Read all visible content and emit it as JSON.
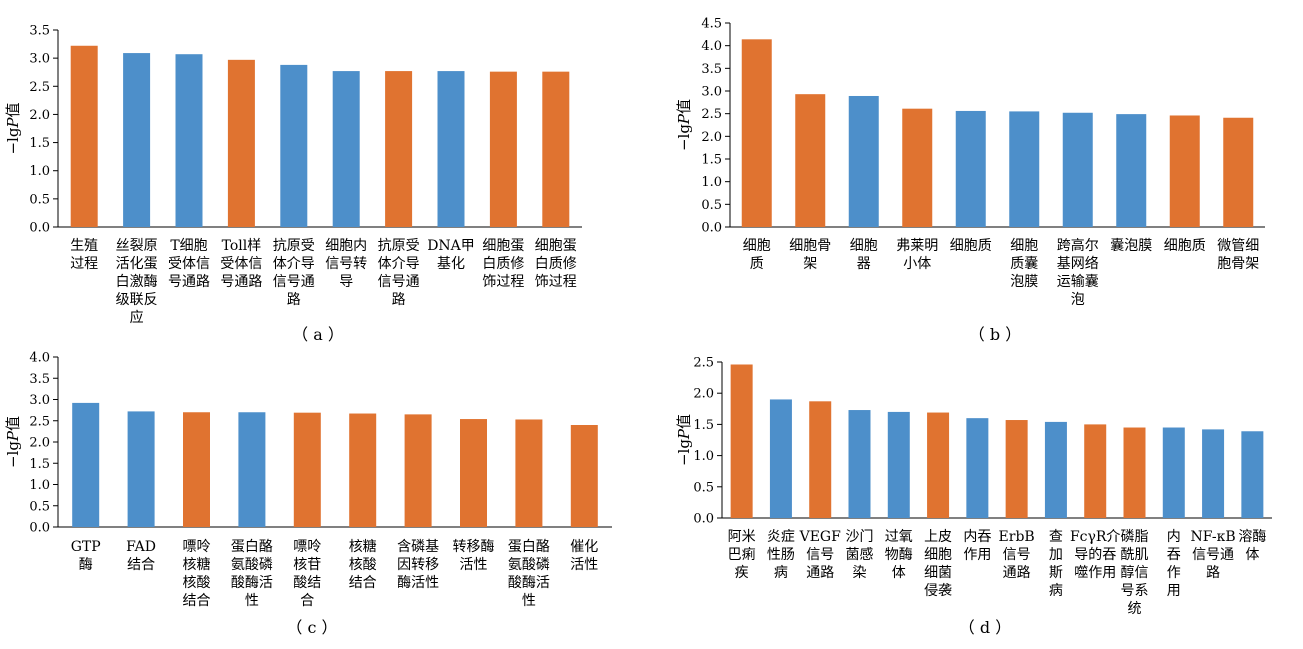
{
  "colors": {
    "blue": "#4d8fca",
    "orange": "#e07330"
  },
  "chart_data": [
    {
      "id": "a",
      "type": "bar",
      "panel_label": "（ a ）",
      "ylabel_prefix": "−lg",
      "ylabel_italic": "P",
      "ylabel_suffix": "值",
      "ylim": [
        0,
        3.5
      ],
      "yticks": [
        "0.0",
        "0.5",
        "1.0",
        "1.5",
        "2.0",
        "2.5",
        "3.0",
        "3.5"
      ],
      "categories": [
        [
          "生殖",
          "过程"
        ],
        [
          "丝裂原",
          "活化蛋",
          "白激酶",
          "级联反",
          "应"
        ],
        [
          "T细胞",
          "受体信",
          "号通路"
        ],
        [
          "Toll样",
          "受体信",
          "号通路"
        ],
        [
          "抗原受",
          "体介导",
          "信号通",
          "路"
        ],
        [
          "细胞内",
          "信号转",
          "导"
        ],
        [
          "抗原受",
          "体介导",
          "信号通",
          "路"
        ],
        [
          "DNA甲",
          "基化"
        ],
        [
          "细胞蛋",
          "白质修",
          "饰过程"
        ],
        [
          "细胞蛋",
          "白质修",
          "饰过程"
        ]
      ],
      "values": [
        3.22,
        3.09,
        3.07,
        2.97,
        2.88,
        2.77,
        2.77,
        2.77,
        2.76,
        2.76
      ],
      "bar_colors": [
        "orange",
        "blue",
        "blue",
        "orange",
        "blue",
        "blue",
        "orange",
        "blue",
        "orange",
        "orange"
      ]
    },
    {
      "id": "b",
      "type": "bar",
      "panel_label": "（ b ）",
      "ylabel_prefix": "−lg",
      "ylabel_italic": "P",
      "ylabel_suffix": "值",
      "ylim": [
        0,
        4.5
      ],
      "yticks": [
        "0.0",
        "0.5",
        "1.0",
        "1.5",
        "2.0",
        "2.5",
        "3.0",
        "3.5",
        "4.0",
        "4.5"
      ],
      "categories": [
        [
          "细胞",
          "质"
        ],
        [
          "细胞骨",
          "架"
        ],
        [
          "细胞",
          "器"
        ],
        [
          "弗莱明",
          "小体"
        ],
        [
          "细胞质"
        ],
        [
          "细胞",
          "质囊",
          "泡膜"
        ],
        [
          "跨高尔",
          "基网络",
          "运输囊",
          "泡"
        ],
        [
          "囊泡膜"
        ],
        [
          "细胞质"
        ],
        [
          "微管细",
          "胞骨架"
        ]
      ],
      "values": [
        4.14,
        2.93,
        2.89,
        2.61,
        2.56,
        2.55,
        2.52,
        2.49,
        2.46,
        2.41
      ],
      "bar_colors": [
        "orange",
        "orange",
        "blue",
        "orange",
        "blue",
        "blue",
        "blue",
        "blue",
        "orange",
        "orange"
      ]
    },
    {
      "id": "c",
      "type": "bar",
      "panel_label": "（ c ）",
      "ylabel_prefix": "−lg",
      "ylabel_italic": "P",
      "ylabel_suffix": "值",
      "ylim": [
        0,
        4.0
      ],
      "yticks": [
        "0.0",
        "0.5",
        "1.0",
        "1.5",
        "2.0",
        "2.5",
        "3.0",
        "3.5",
        "4.0"
      ],
      "categories": [
        [
          "GTP",
          "酶"
        ],
        [
          "FAD",
          "结合"
        ],
        [
          "嘌呤",
          "核糖",
          "核酸",
          "结合"
        ],
        [
          "蛋白酪",
          "氨酸磷",
          "酸酶活",
          "性"
        ],
        [
          "嘌呤",
          "核苷",
          "酸结",
          "合"
        ],
        [
          "核糖",
          "核酸",
          "结合"
        ],
        [
          "含磷基",
          "因转移",
          "酶活性"
        ],
        [
          "转移酶",
          "活性"
        ],
        [
          "蛋白酪",
          "氨酸磷",
          "酸酶活",
          "性"
        ],
        [
          "催化",
          "活性"
        ]
      ],
      "values": [
        2.92,
        2.72,
        2.7,
        2.7,
        2.69,
        2.67,
        2.65,
        2.54,
        2.53,
        2.4
      ],
      "bar_colors": [
        "blue",
        "blue",
        "orange",
        "blue",
        "orange",
        "orange",
        "orange",
        "orange",
        "orange",
        "orange"
      ]
    },
    {
      "id": "d",
      "type": "bar",
      "panel_label": "（ d ）",
      "ylabel_prefix": "−lg",
      "ylabel_italic": "P",
      "ylabel_suffix": "值",
      "ylim": [
        0,
        2.5
      ],
      "yticks": [
        "0.0",
        "0.5",
        "1.0",
        "1.5",
        "2.0",
        "2.5"
      ],
      "categories": [
        [
          "阿米",
          "巴痢",
          "疾"
        ],
        [
          "炎症",
          "性肠",
          "病"
        ],
        [
          "VEGF",
          "信号",
          "通路"
        ],
        [
          "沙门",
          "菌感",
          "染"
        ],
        [
          "过氧",
          "物酶",
          "体"
        ],
        [
          "上皮",
          "细胞",
          "细菌",
          "侵袭"
        ],
        [
          "内吞",
          "作用"
        ],
        [
          "ErbB",
          "信号",
          "通路"
        ],
        [
          "查",
          "加",
          "斯",
          "病"
        ],
        [
          "FcγR介",
          "导的吞",
          "噬作用"
        ],
        [
          "磷脂",
          "酰肌",
          "醇信",
          "号系",
          "统"
        ],
        [
          "内",
          "吞",
          "作",
          "用"
        ],
        [
          "NF-κB",
          "信号通",
          "路"
        ],
        [
          "溶酶",
          "体"
        ]
      ],
      "values": [
        2.46,
        1.9,
        1.87,
        1.73,
        1.7,
        1.69,
        1.6,
        1.57,
        1.54,
        1.5,
        1.45,
        1.45,
        1.42,
        1.39
      ],
      "bar_colors": [
        "orange",
        "blue",
        "orange",
        "blue",
        "blue",
        "orange",
        "blue",
        "orange",
        "blue",
        "orange",
        "orange",
        "blue",
        "blue",
        "blue"
      ]
    }
  ]
}
